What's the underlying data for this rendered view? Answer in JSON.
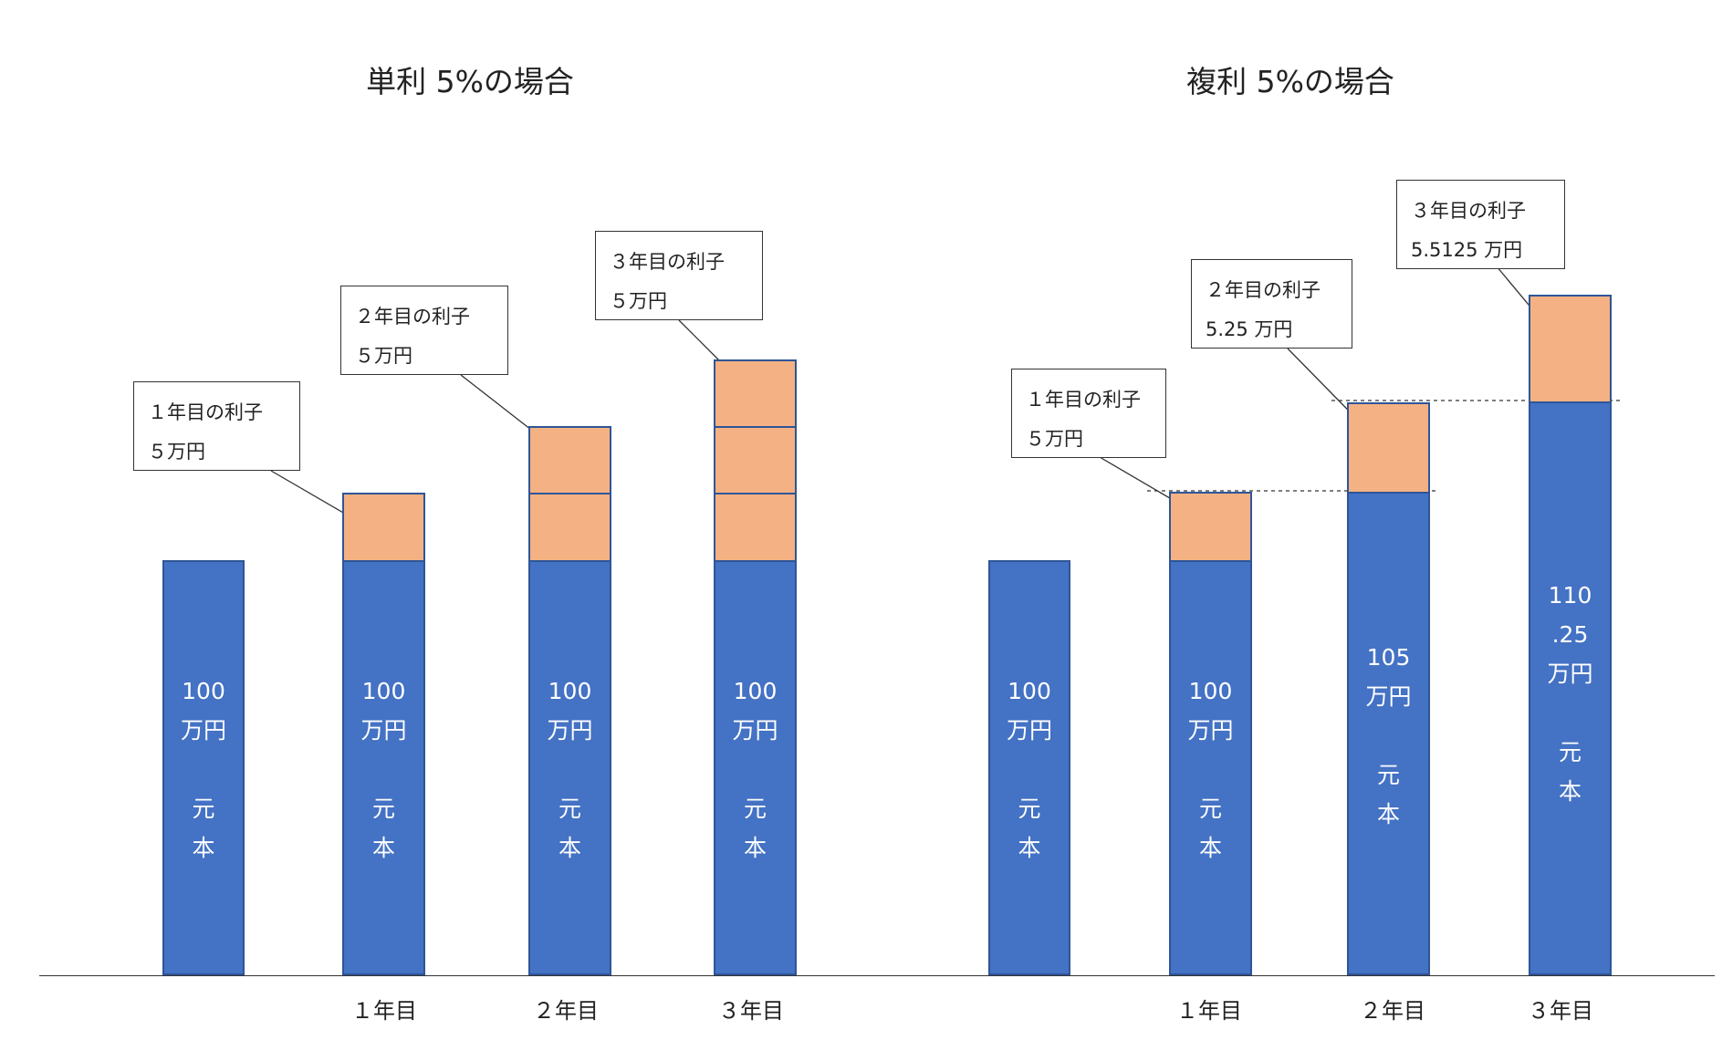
{
  "titles": {
    "simple": "単利 5%の場合",
    "compound": "複利 5%の場合"
  },
  "x_labels": {
    "y1": "１年目",
    "y2": "２年目",
    "y3": "３年目"
  },
  "bar_labels": {
    "p100": [
      "100",
      "万円",
      "",
      "元",
      "本"
    ],
    "p105": [
      "105",
      "万円",
      "",
      "元",
      "本"
    ],
    "p11025": [
      "110",
      ".25",
      "万円",
      "",
      "元",
      "本"
    ]
  },
  "callouts": {
    "simple_y1": [
      "１年目の利子",
      "５万円"
    ],
    "simple_y2": [
      "２年目の利子",
      "５万円"
    ],
    "simple_y3": [
      "３年目の利子",
      "５万円"
    ],
    "compound_y1": [
      "１年目の利子",
      "５万円"
    ],
    "compound_y2": [
      "２年目の利子",
      "5.25 万円"
    ],
    "compound_y3": [
      "３年目の利子",
      "5.5125 万円"
    ]
  },
  "colors": {
    "principal": "#4472c4",
    "interest": "#f4b183",
    "border": "#2f5597"
  }
}
